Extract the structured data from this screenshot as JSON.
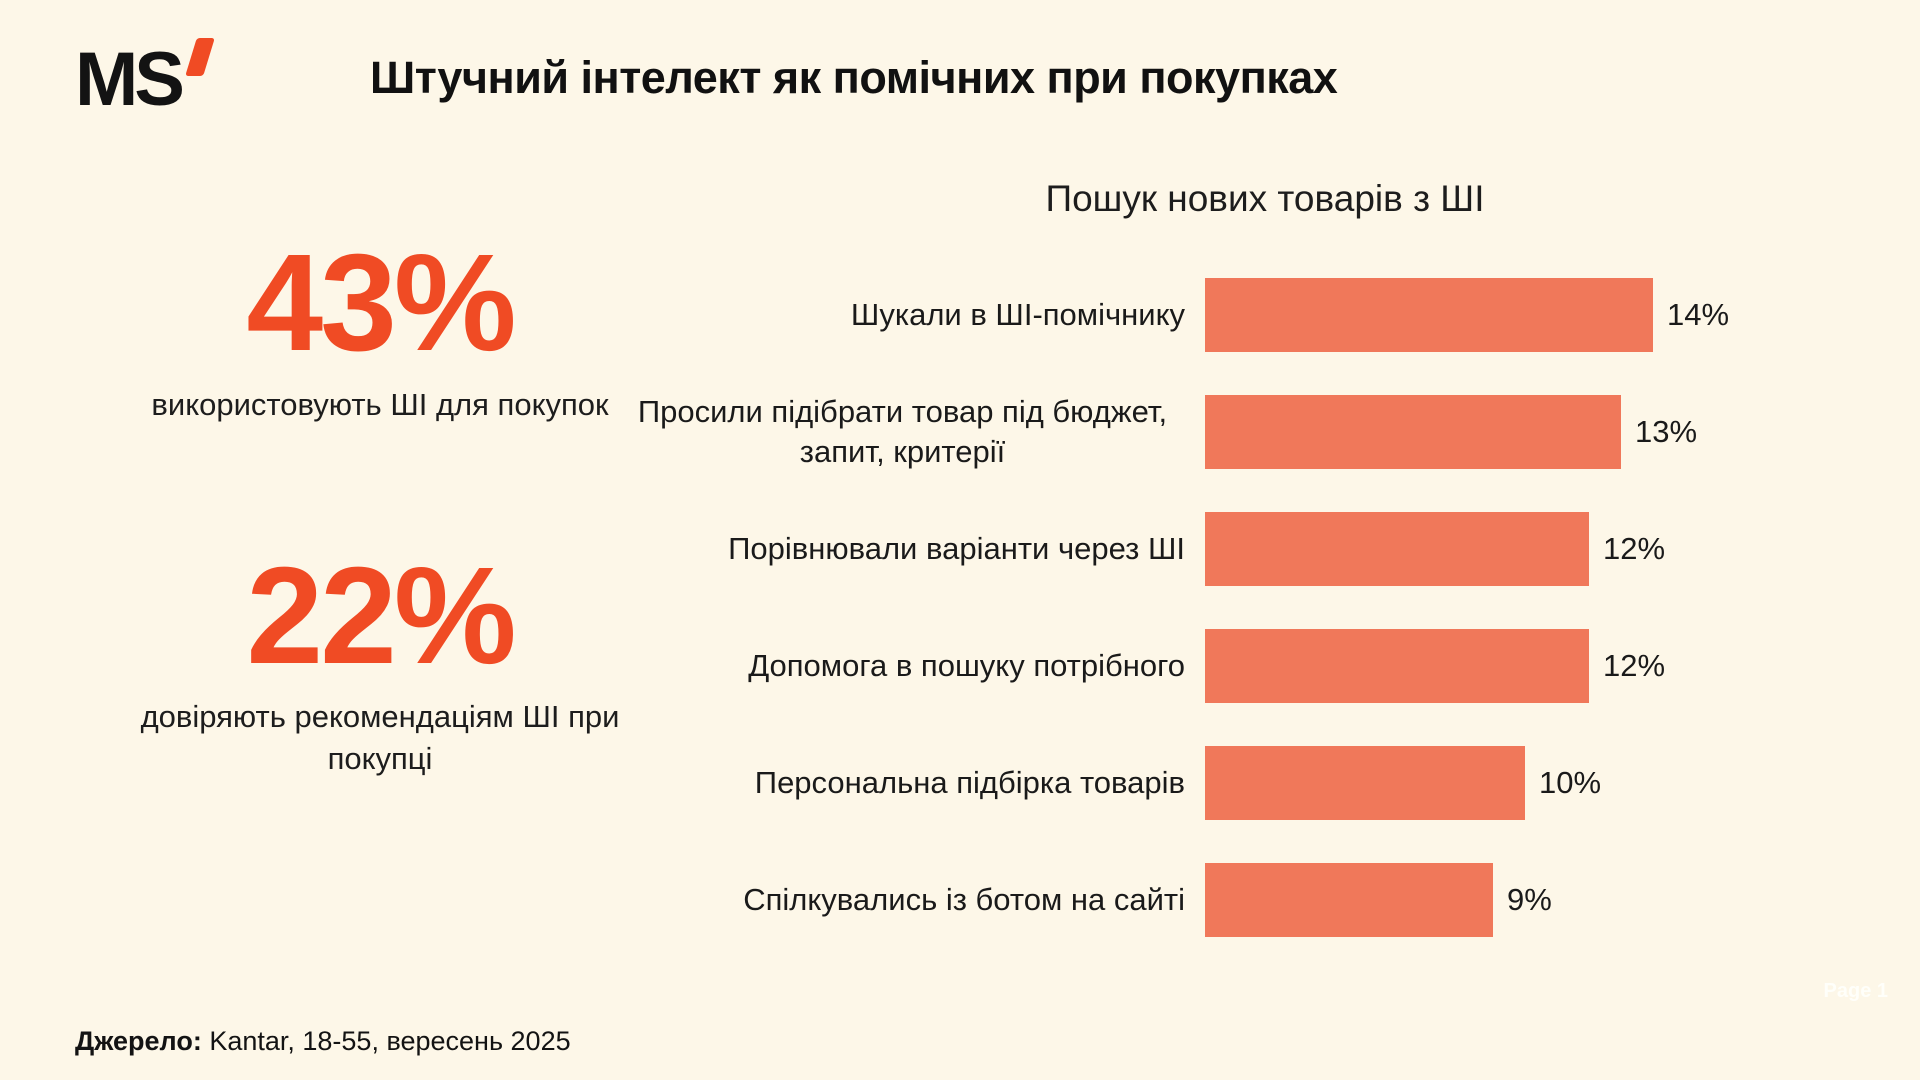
{
  "brand": {
    "logo_text": "MS"
  },
  "header": {
    "title": "Штучний інтелект як помічних при покупках"
  },
  "stats": [
    {
      "value": "43%",
      "caption": "використовують ШІ для покупок"
    },
    {
      "value": "22%",
      "caption": "довіряють рекомендаціям ШІ при покупці"
    }
  ],
  "chart_data": {
    "type": "bar",
    "orientation": "horizontal",
    "title": "Пошук нових товарів з ШІ",
    "categories": [
      "Шукали в ШІ-помічнику",
      "Просили підібрати товар під бюджет, запит, критерії",
      "Порівнювали варіанти через ШІ",
      "Допомога в пошуку потрібного",
      "Персональна підбірка товарів",
      "Спілкувались із ботом на сайті"
    ],
    "categories_wrapped": [
      [
        "Шукали в ШІ-помічнику"
      ],
      [
        "Просили підібрати товар під бюджет,",
        "запит, критерії"
      ],
      [
        "Порівнювали варіанти через ШІ"
      ],
      [
        "Допомога в пошуку потрібного"
      ],
      [
        "Персональна підбірка товарів"
      ],
      [
        "Спілкувались із ботом на сайті"
      ]
    ],
    "values": [
      14,
      13,
      12,
      12,
      10,
      9
    ],
    "value_labels": [
      "14%",
      "13%",
      "12%",
      "12%",
      "10%",
      "9%"
    ],
    "xlim": [
      0,
      14
    ],
    "grid": false,
    "legend": "none",
    "bar_color": "#F0785A"
  },
  "footer": {
    "source_label": "Джерело:",
    "source_text": " Kantar, 18-55, вересень 2025"
  },
  "watermark": "Page 1",
  "colors": {
    "background": "#FDF7E8",
    "accent": "#F04B24",
    "bar": "#F0785A",
    "text": "#161616"
  }
}
